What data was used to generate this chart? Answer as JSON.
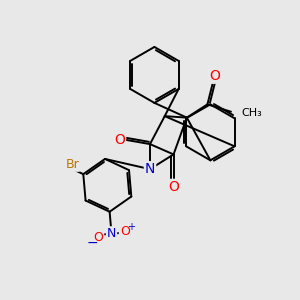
{
  "bg_color": "#e8e8e8",
  "atom_colors": {
    "C": "#000000",
    "N": "#0000cc",
    "O": "#ff0000",
    "Br": "#bb7700",
    "H": "#000000"
  },
  "bond_color": "#000000",
  "bond_width": 1.4,
  "figsize": [
    3.0,
    3.0
  ],
  "dpi": 100
}
